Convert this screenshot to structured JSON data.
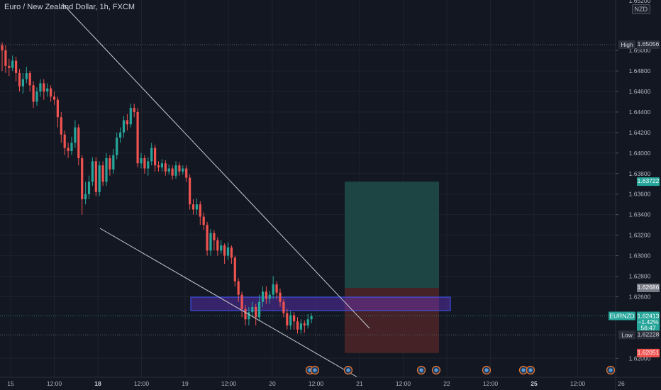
{
  "header": {
    "symbol_title": "Euro / New Zealand Dollar, 1h, FXCM",
    "currency": "NZD"
  },
  "colors": {
    "background": "#131722",
    "grid": "#1e222d",
    "up": "#26a69a",
    "down": "#ef5350",
    "trendline": "#c9ccd4",
    "zone": "#7c3aed",
    "zone_border": "#3d5afe",
    "target": "#1e4a47",
    "stop": "#4a2327"
  },
  "chart_data": {
    "type": "candlestick",
    "y_axis": {
      "min": 1.6185,
      "max": 1.6545,
      "ticks": [
        "1.65000",
        "1.64800",
        "1.64600",
        "1.64400",
        "1.64200",
        "1.64000",
        "1.63800",
        "1.63600",
        "1.63400",
        "1.63200",
        "1.63000",
        "1.62800",
        "1.62600",
        "1.62000"
      ],
      "tick_values": [
        1.65,
        1.648,
        1.646,
        1.644,
        1.642,
        1.64,
        1.638,
        1.636,
        1.634,
        1.632,
        1.63,
        1.628,
        1.626,
        1.62
      ],
      "partial_top_tick": "1.65200"
    },
    "x_axis": {
      "labels": [
        {
          "text": "15",
          "bold": false
        },
        {
          "text": "12:00",
          "bold": false
        },
        {
          "text": "18",
          "bold": true
        },
        {
          "text": "12:00",
          "bold": false
        },
        {
          "text": "19",
          "bold": false
        },
        {
          "text": "12:00",
          "bold": false
        },
        {
          "text": "20",
          "bold": false
        },
        {
          "text": "12:00",
          "bold": false
        },
        {
          "text": "21",
          "bold": false
        },
        {
          "text": "12:00",
          "bold": false
        },
        {
          "text": "22",
          "bold": false
        },
        {
          "text": "12:00",
          "bold": false
        },
        {
          "text": "25",
          "bold": true
        },
        {
          "text": "12:00",
          "bold": false
        },
        {
          "text": "26",
          "bold": false
        }
      ]
    },
    "candles": [
      [
        1.6505,
        1.65,
        1.6508,
        1.648
      ],
      [
        1.65,
        1.6485,
        1.6505,
        1.6478
      ],
      [
        1.6485,
        1.6483,
        1.6492,
        1.6475
      ],
      [
        1.6483,
        1.649,
        1.6495,
        1.648
      ],
      [
        1.649,
        1.6478,
        1.6494,
        1.647
      ],
      [
        1.6478,
        1.6465,
        1.6482,
        1.646
      ],
      [
        1.6465,
        1.6472,
        1.6478,
        1.6458
      ],
      [
        1.6472,
        1.6478,
        1.6484,
        1.6468
      ],
      [
        1.6478,
        1.6466,
        1.648,
        1.646
      ],
      [
        1.6466,
        1.645,
        1.647,
        1.6444
      ],
      [
        1.645,
        1.646,
        1.6464,
        1.6446
      ],
      [
        1.646,
        1.6468,
        1.6472,
        1.6455
      ],
      [
        1.6468,
        1.646,
        1.6472,
        1.6452
      ],
      [
        1.646,
        1.6463,
        1.6468,
        1.6455
      ],
      [
        1.6463,
        1.6455,
        1.6466,
        1.645
      ],
      [
        1.6455,
        1.6452,
        1.646,
        1.6447
      ],
      [
        1.6452,
        1.6435,
        1.6455,
        1.6425
      ],
      [
        1.6435,
        1.6418,
        1.644,
        1.641
      ],
      [
        1.6418,
        1.6405,
        1.6422,
        1.6398
      ],
      [
        1.6405,
        1.6402,
        1.641,
        1.6395
      ],
      [
        1.6402,
        1.641,
        1.6416,
        1.6398
      ],
      [
        1.641,
        1.6425,
        1.6432,
        1.6405
      ],
      [
        1.6425,
        1.6395,
        1.6428,
        1.6388
      ],
      [
        1.6395,
        1.6355,
        1.6398,
        1.634
      ],
      [
        1.6355,
        1.636,
        1.6372,
        1.635
      ],
      [
        1.636,
        1.6372,
        1.6378,
        1.6355
      ],
      [
        1.6372,
        1.6392,
        1.6396,
        1.6368
      ],
      [
        1.6392,
        1.6362,
        1.6396,
        1.6358
      ],
      [
        1.6362,
        1.6388,
        1.6392,
        1.6358
      ],
      [
        1.6388,
        1.6372,
        1.6392,
        1.6368
      ],
      [
        1.6372,
        1.6395,
        1.64,
        1.6368
      ],
      [
        1.6395,
        1.6384,
        1.6398,
        1.6378
      ],
      [
        1.6384,
        1.6398,
        1.6404,
        1.638
      ],
      [
        1.6398,
        1.6415,
        1.642,
        1.6394
      ],
      [
        1.6415,
        1.642,
        1.6425,
        1.641
      ],
      [
        1.642,
        1.6432,
        1.6436,
        1.6415
      ],
      [
        1.6432,
        1.6428,
        1.6438,
        1.6422
      ],
      [
        1.6428,
        1.6444,
        1.6448,
        1.6425
      ],
      [
        1.6444,
        1.644,
        1.6448,
        1.6435
      ],
      [
        1.644,
        1.639,
        1.6444,
        1.6386
      ],
      [
        1.639,
        1.6395,
        1.64,
        1.6385
      ],
      [
        1.6395,
        1.6385,
        1.6398,
        1.638
      ],
      [
        1.6385,
        1.6392,
        1.6396,
        1.6378
      ],
      [
        1.6392,
        1.6405,
        1.641,
        1.6388
      ],
      [
        1.6405,
        1.6388,
        1.6408,
        1.6382
      ],
      [
        1.6388,
        1.6386,
        1.6392,
        1.6382
      ],
      [
        1.6386,
        1.639,
        1.6394,
        1.6382
      ],
      [
        1.639,
        1.6382,
        1.6393,
        1.6378
      ],
      [
        1.6382,
        1.6385,
        1.6389,
        1.6379
      ],
      [
        1.6385,
        1.6378,
        1.6388,
        1.6374
      ],
      [
        1.6378,
        1.6388,
        1.6392,
        1.6375
      ],
      [
        1.6388,
        1.6382,
        1.6391,
        1.6378
      ],
      [
        1.6382,
        1.6385,
        1.6388,
        1.6379
      ],
      [
        1.6385,
        1.6376,
        1.6388,
        1.6372
      ],
      [
        1.6376,
        1.635,
        1.6379,
        1.6345
      ],
      [
        1.635,
        1.6345,
        1.6355,
        1.634
      ],
      [
        1.6345,
        1.635,
        1.6356,
        1.634
      ],
      [
        1.635,
        1.6338,
        1.6353,
        1.633
      ],
      [
        1.6338,
        1.633,
        1.6342,
        1.6325
      ],
      [
        1.633,
        1.6305,
        1.6333,
        1.63
      ],
      [
        1.6305,
        1.6322,
        1.6326,
        1.63
      ],
      [
        1.6322,
        1.6315,
        1.6325,
        1.6305
      ],
      [
        1.6315,
        1.6305,
        1.6318,
        1.63
      ],
      [
        1.6305,
        1.631,
        1.6315,
        1.6302
      ],
      [
        1.631,
        1.63,
        1.6312,
        1.6292
      ],
      [
        1.63,
        1.6308,
        1.6313,
        1.6296
      ],
      [
        1.6308,
        1.6298,
        1.631,
        1.6292
      ],
      [
        1.6298,
        1.6275,
        1.63,
        1.627
      ],
      [
        1.6275,
        1.6262,
        1.6278,
        1.6255
      ],
      [
        1.6262,
        1.6248,
        1.6265,
        1.624
      ],
      [
        1.6248,
        1.6238,
        1.6252,
        1.6232
      ],
      [
        1.6238,
        1.6245,
        1.625,
        1.6232
      ],
      [
        1.6245,
        1.625,
        1.6255,
        1.624
      ],
      [
        1.625,
        1.624,
        1.6253,
        1.6232
      ],
      [
        1.624,
        1.6255,
        1.6262,
        1.6236
      ],
      [
        1.6255,
        1.6265,
        1.627,
        1.625
      ],
      [
        1.6265,
        1.6258,
        1.627,
        1.6253
      ],
      [
        1.6258,
        1.6262,
        1.6266,
        1.6253
      ],
      [
        1.6262,
        1.6272,
        1.628,
        1.6258
      ],
      [
        1.6272,
        1.6264,
        1.6275,
        1.6258
      ],
      [
        1.6264,
        1.6255,
        1.6268,
        1.625
      ],
      [
        1.6255,
        1.6244,
        1.6258,
        1.624
      ],
      [
        1.6244,
        1.6232,
        1.6248,
        1.6228
      ],
      [
        1.6232,
        1.6242,
        1.6246,
        1.6228
      ],
      [
        1.6242,
        1.6236,
        1.6245,
        1.6228
      ],
      [
        1.6236,
        1.6228,
        1.624,
        1.6224
      ],
      [
        1.6228,
        1.6234,
        1.6238,
        1.6224
      ],
      [
        1.6234,
        1.6232,
        1.6237,
        1.6225
      ],
      [
        1.6232,
        1.6238,
        1.6243,
        1.6229
      ],
      [
        1.6238,
        1.6241,
        1.6244,
        1.6234
      ]
    ],
    "levels": {
      "high": {
        "label": "High",
        "value": "1.65056"
      },
      "target": {
        "value": "1.63722"
      },
      "entry": {
        "value": "1.62686"
      },
      "last": {
        "symbol": "EURNZD",
        "value": "1.62413",
        "change": "−1.42%",
        "countdown": "56:47"
      },
      "low": {
        "label": "Low",
        "value": "1.62228"
      },
      "stop": {
        "value": "1.62051"
      }
    },
    "grid": true
  }
}
